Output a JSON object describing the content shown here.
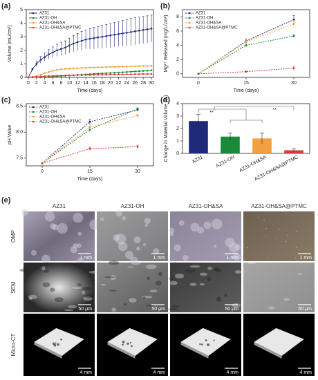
{
  "chart_data": [
    {
      "type": "line",
      "panel": "(a)",
      "x_label": "Time (days)",
      "y_label": "Volume (mL/cm²)",
      "x": [
        0,
        1,
        2,
        3,
        4,
        5,
        6,
        7,
        8,
        9,
        10,
        11,
        12,
        13,
        14,
        15,
        16,
        17,
        18,
        19,
        20,
        21,
        22,
        23,
        24,
        25,
        26,
        27,
        28,
        29,
        30
      ],
      "xlim": [
        -0.5,
        30.5
      ],
      "xticks": [
        0,
        2,
        4,
        6,
        8,
        10,
        12,
        14,
        16,
        18,
        20,
        22,
        24,
        26,
        28,
        30
      ],
      "ylim": [
        0,
        5
      ],
      "yticks": [
        0,
        1,
        2,
        3,
        4,
        5
      ],
      "dashed": false,
      "series": [
        {
          "name": "AZ31",
          "color": "#1f2a7a",
          "values": [
            0,
            0.6,
            1.0,
            1.3,
            1.5,
            1.7,
            1.85,
            2.0,
            2.1,
            2.2,
            2.35,
            2.5,
            2.6,
            2.7,
            2.8,
            2.85,
            2.9,
            2.95,
            3.0,
            3.05,
            3.1,
            3.15,
            3.2,
            3.25,
            3.3,
            3.35,
            3.4,
            3.45,
            3.5,
            3.55,
            3.6
          ],
          "errors": [
            0,
            0.1,
            0.2,
            0.25,
            0.3,
            0.35,
            0.4,
            0.45,
            0.5,
            0.5,
            0.55,
            0.6,
            0.65,
            0.7,
            0.7,
            0.75,
            0.8,
            0.8,
            0.85,
            0.85,
            0.9,
            0.9,
            0.9,
            0.95,
            0.95,
            1.0,
            1.0,
            1.0,
            1.0,
            1.0,
            1.0
          ]
        },
        {
          "name": "AZ31-OH",
          "color": "#1a8a3a",
          "values": [
            0,
            0,
            0,
            0,
            0,
            0.02,
            0.05,
            0.08,
            0.1,
            0.12,
            0.14,
            0.16,
            0.18,
            0.2,
            0.22,
            0.24,
            0.26,
            0.28,
            0.3,
            0.31,
            0.32,
            0.34,
            0.36,
            0.38,
            0.4,
            0.42,
            0.44,
            0.46,
            0.48,
            0.5,
            0.52
          ]
        },
        {
          "name": "AZ31-OH&SA",
          "color": "#f5a040",
          "values": [
            0,
            0.05,
            0.1,
            0.2,
            0.3,
            0.4,
            0.5,
            0.55,
            0.6,
            0.62,
            0.64,
            0.66,
            0.68,
            0.7,
            0.71,
            0.72,
            0.73,
            0.74,
            0.75,
            0.76,
            0.77,
            0.78,
            0.79,
            0.8,
            0.8,
            0.81,
            0.82,
            0.83,
            0.84,
            0.85,
            0.85
          ]
        },
        {
          "name": "AZ31-OH&SA@PTMC",
          "color": "#d83a3a",
          "values": [
            0,
            0.02,
            0.04,
            0.06,
            0.08,
            0.1,
            0.11,
            0.12,
            0.13,
            0.14,
            0.15,
            0.16,
            0.17,
            0.17,
            0.18,
            0.18,
            0.19,
            0.19,
            0.2,
            0.2,
            0.21,
            0.21,
            0.22,
            0.22,
            0.23,
            0.23,
            0.24,
            0.24,
            0.25,
            0.25,
            0.25
          ]
        }
      ]
    },
    {
      "type": "line",
      "panel": "(b)",
      "x_label": "Time (days)",
      "y_label": "Mg²⁺ Released (mg/L/cm²)",
      "x": [
        0,
        15,
        30
      ],
      "xlim": [
        -5,
        35
      ],
      "xticks": [
        0,
        15,
        30
      ],
      "ylim": [
        -0.5,
        9
      ],
      "yticks": [
        0,
        2,
        4,
        6,
        8
      ],
      "dashed": true,
      "series": [
        {
          "name": "AZ31",
          "color": "#1f2a7a",
          "values": [
            0,
            4.6,
            7.6
          ],
          "errors": [
            0,
            0.3,
            0.6
          ]
        },
        {
          "name": "AZ31-OH",
          "color": "#1a8a3a",
          "values": [
            0,
            4.0,
            5.3
          ],
          "errors": [
            0,
            0.2,
            0.2
          ]
        },
        {
          "name": "AZ31-OH&SA",
          "color": "#f5a040",
          "values": [
            0,
            4.5,
            7.0
          ],
          "errors": [
            0,
            0.2,
            0.5
          ]
        },
        {
          "name": "AZ31-OH&SA@PTMC",
          "color": "#d83a3a",
          "values": [
            0,
            0.3,
            0.8
          ],
          "errors": [
            0,
            0.1,
            0.3
          ]
        }
      ]
    },
    {
      "type": "line",
      "panel": "(c)",
      "x_label": "Time (days)",
      "y_label": "pH Value",
      "x": [
        0,
        15,
        30
      ],
      "xlim": [
        -5,
        35
      ],
      "xticks": [
        0,
        15,
        30
      ],
      "ylim": [
        7.35,
        8.55
      ],
      "yticks": [
        7.5,
        {
          "value": 8,
          "label": "8.0"
        },
        8.5
      ],
      "dashed": true,
      "series": [
        {
          "name": "AZ31",
          "color": "#1f2a7a",
          "values": [
            7.4,
            8.2,
            8.43
          ],
          "errors": [
            0,
            0.05,
            0.02
          ]
        },
        {
          "name": "AZ31-OH",
          "color": "#1a8a3a",
          "values": [
            7.4,
            8.05,
            8.45
          ],
          "errors": [
            0,
            0.05,
            0.02
          ]
        },
        {
          "name": "AZ31-OH&SA",
          "color": "#f5a040",
          "values": [
            7.4,
            8.1,
            8.32
          ],
          "errors": [
            0,
            0.05,
            0.03
          ]
        },
        {
          "name": "AZ31-OH&SA@PTMC",
          "color": "#d83a3a",
          "values": [
            7.4,
            7.68,
            7.72
          ],
          "errors": [
            0,
            0.03,
            0.03
          ]
        }
      ]
    },
    {
      "type": "bar",
      "panel": "(d)",
      "y_label": "Change in Material Volume (%)",
      "categories": [
        "AZ31",
        "AZ31-OH",
        "AZ31-OH&SA",
        "AZ31-OH&SA@PTMC"
      ],
      "values": [
        2.6,
        1.35,
        1.2,
        0.25
      ],
      "errors": [
        0.55,
        0.3,
        0.45,
        0.12
      ],
      "colors": [
        "#1f2a7a",
        "#1a8a3a",
        "#f5a040",
        "#d83a3a"
      ],
      "ylim": [
        0,
        4
      ],
      "yticks": [
        0,
        1,
        2,
        3,
        4
      ],
      "annotations": [
        "**",
        "**"
      ]
    }
  ],
  "image_grid": {
    "label": "(e)",
    "columns": [
      "AZ31",
      "AZ31-OH",
      "AZ31-OH&SA",
      "AZ31-OH&SA@PTMC"
    ],
    "rows": [
      {
        "name": "OMP",
        "scale_bars": [
          "1 mm",
          "1 mm",
          "1 mm",
          "1 mm"
        ]
      },
      {
        "name": "SEM",
        "scale_bars": [
          "50 μm",
          "50 μm",
          "50 μm",
          "50 μm"
        ]
      },
      {
        "name": "Micro-CT",
        "scale_bars": [
          "4 mm",
          "4 mm",
          "4 mm",
          "4 mm"
        ]
      }
    ]
  }
}
